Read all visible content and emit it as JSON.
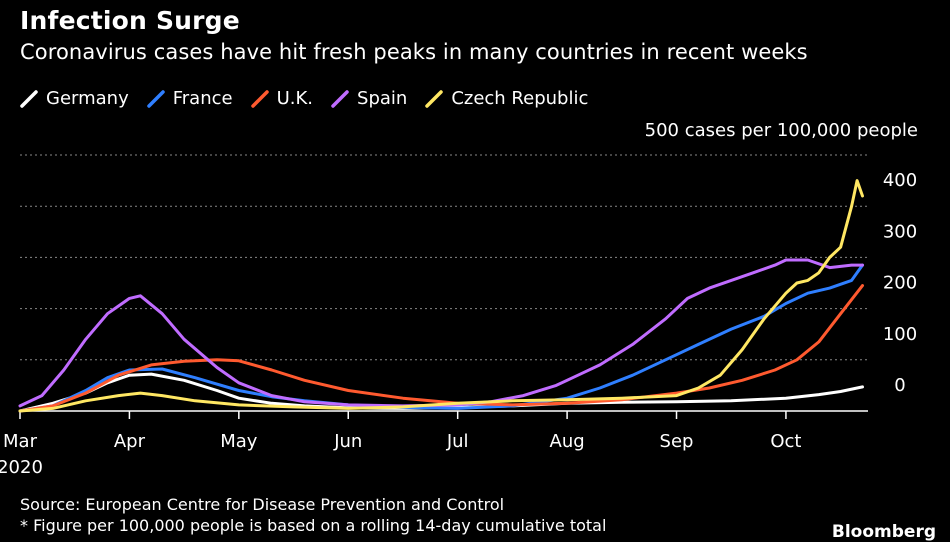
{
  "title": "Infection Surge",
  "subtitle": "Coronavirus cases have hit fresh peaks in many countries in recent weeks",
  "unit_label": "500 cases per 100,000 people",
  "source": "Source: European Centre for Disease Prevention and Control",
  "footnote": "* Figure per 100,000 people is based on a rolling 14-day cumulative total",
  "brand": "Bloomberg",
  "chart_data": {
    "type": "line",
    "title": "Infection Surge",
    "ylabel": "500 cases per 100,000 people",
    "ylim": [
      0,
      500
    ],
    "xlim": [
      0,
      7.75
    ],
    "yticks": [
      400,
      300,
      200,
      100,
      0
    ],
    "x_tick_positions": [
      0,
      1,
      2,
      3,
      4,
      5,
      6,
      7
    ],
    "x_tick_labels": [
      "Mar",
      "Apr",
      "May",
      "Jun",
      "Jul",
      "Aug",
      "Sep",
      "Oct"
    ],
    "x_tick_sub": {
      "0": "2020"
    },
    "x_units": "months since Mar 1, 2020",
    "grid": true,
    "legend_position": "top-left",
    "series": [
      {
        "name": "Germany",
        "color": "#ffffff",
        "x": [
          0,
          0.3,
          0.6,
          0.8,
          1.0,
          1.2,
          1.5,
          1.8,
          2.0,
          2.3,
          2.6,
          3.0,
          3.5,
          4.0,
          4.5,
          5.0,
          5.5,
          6.0,
          6.5,
          7.0,
          7.3,
          7.5,
          7.7
        ],
        "y": [
          0,
          15,
          35,
          55,
          70,
          72,
          60,
          40,
          25,
          15,
          10,
          6,
          5,
          7,
          10,
          15,
          17,
          18,
          20,
          25,
          32,
          38,
          47
        ]
      },
      {
        "name": "France",
        "color": "#2f7fff",
        "x": [
          0,
          0.3,
          0.6,
          0.8,
          1.0,
          1.3,
          1.6,
          2.0,
          2.3,
          2.6,
          3.0,
          3.5,
          4.0,
          4.5,
          5.0,
          5.3,
          5.6,
          5.9,
          6.2,
          6.5,
          6.8,
          7.0,
          7.2,
          7.4,
          7.6,
          7.7
        ],
        "y": [
          0,
          10,
          40,
          65,
          80,
          82,
          65,
          40,
          28,
          20,
          12,
          7,
          5,
          10,
          25,
          45,
          70,
          100,
          130,
          160,
          185,
          210,
          230,
          240,
          255,
          285
        ]
      },
      {
        "name": "U.K.",
        "color": "#ff5a2f",
        "x": [
          0,
          0.3,
          0.6,
          0.9,
          1.2,
          1.5,
          1.8,
          2.0,
          2.3,
          2.6,
          3.0,
          3.5,
          4.0,
          4.5,
          5.0,
          5.5,
          6.0,
          6.3,
          6.6,
          6.9,
          7.1,
          7.3,
          7.5,
          7.7
        ],
        "y": [
          0,
          10,
          35,
          70,
          90,
          97,
          100,
          98,
          80,
          60,
          40,
          25,
          15,
          12,
          15,
          22,
          35,
          45,
          60,
          80,
          100,
          135,
          190,
          245
        ]
      },
      {
        "name": "Spain",
        "color": "#c06cff",
        "x": [
          0,
          0.2,
          0.4,
          0.6,
          0.8,
          1.0,
          1.1,
          1.3,
          1.5,
          1.8,
          2.0,
          2.3,
          2.6,
          3.0,
          3.5,
          4.0,
          4.3,
          4.6,
          4.9,
          5.1,
          5.3,
          5.6,
          5.9,
          6.1,
          6.3,
          6.5,
          6.7,
          6.9,
          7.0,
          7.2,
          7.4,
          7.6,
          7.7
        ],
        "y": [
          10,
          30,
          80,
          140,
          190,
          220,
          225,
          190,
          140,
          85,
          55,
          30,
          18,
          12,
          10,
          12,
          18,
          30,
          50,
          70,
          90,
          130,
          180,
          220,
          240,
          255,
          270,
          285,
          295,
          295,
          280,
          285,
          285
        ]
      },
      {
        "name": "Czech Republic",
        "color": "#ffe763",
        "x": [
          0,
          0.3,
          0.6,
          0.9,
          1.1,
          1.3,
          1.6,
          2.0,
          2.5,
          3.0,
          3.5,
          4.0,
          4.5,
          5.0,
          5.5,
          6.0,
          6.2,
          6.4,
          6.6,
          6.8,
          7.0,
          7.1,
          7.2,
          7.3,
          7.4,
          7.5,
          7.6,
          7.65,
          7.7
        ],
        "y": [
          0,
          5,
          20,
          30,
          35,
          30,
          20,
          12,
          8,
          5,
          8,
          15,
          20,
          22,
          25,
          30,
          45,
          70,
          120,
          180,
          230,
          250,
          255,
          270,
          300,
          320,
          400,
          450,
          420
        ]
      }
    ]
  }
}
